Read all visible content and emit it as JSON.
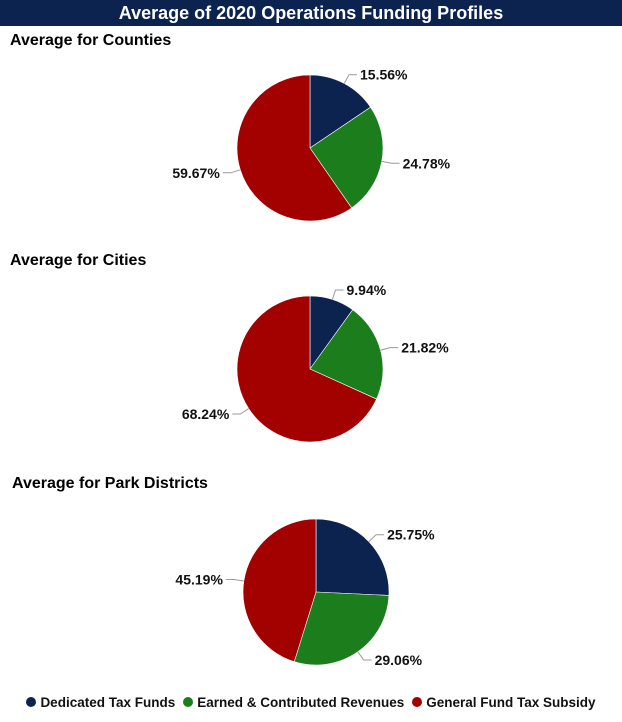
{
  "header": {
    "title": "Average of 2020 Operations Funding Profiles"
  },
  "colors": {
    "dedicated": "#0c2350",
    "earned": "#1c7d1c",
    "general": "#a30000",
    "title_bg": "#0c2350"
  },
  "legend": {
    "items": [
      {
        "label": "Dedicated Tax Funds",
        "color": "#0c2350"
      },
      {
        "label": "Earned & Contributed Revenues",
        "color": "#1c7d1c"
      },
      {
        "label": "General Fund Tax Subsidy",
        "color": "#a30000"
      }
    ]
  },
  "chart_data": [
    {
      "type": "pie",
      "title": "Average for Counties",
      "categories": [
        "Dedicated Tax Funds",
        "Earned & Contributed Revenues",
        "General Fund Tax Subsidy"
      ],
      "values": [
        15.56,
        24.78,
        59.67
      ],
      "labels": [
        "15.56%",
        "24.78%",
        "59.67%"
      ]
    },
    {
      "type": "pie",
      "title": "Average for Cities",
      "categories": [
        "Dedicated Tax Funds",
        "Earned & Contributed Revenues",
        "General Fund Tax Subsidy"
      ],
      "values": [
        9.94,
        21.82,
        68.24
      ],
      "labels": [
        "9.94%",
        "21.82%",
        "68.24%"
      ]
    },
    {
      "type": "pie",
      "title": "Average for Park Districts",
      "categories": [
        "Dedicated Tax Funds",
        "Earned & Contributed Revenues",
        "General Fund Tax Subsidy"
      ],
      "values": [
        25.75,
        29.06,
        45.19
      ],
      "labels": [
        "25.75%",
        "29.06%",
        "45.19%"
      ]
    }
  ]
}
